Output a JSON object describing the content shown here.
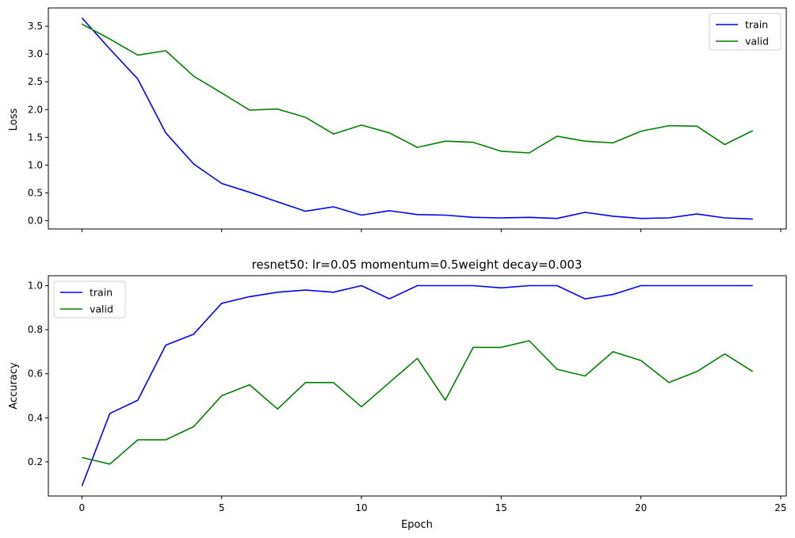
{
  "chart_data": [
    {
      "type": "line",
      "title": "",
      "xlabel": "",
      "ylabel": "Loss",
      "xlim": [
        -1.2,
        25.2
      ],
      "ylim": [
        -0.15,
        3.83
      ],
      "xticks": [
        0,
        5,
        10,
        15,
        20,
        25
      ],
      "xtick_labels": [
        "",
        "",
        "",
        "",
        "",
        ""
      ],
      "yticks": [
        0.0,
        0.5,
        1.0,
        1.5,
        2.0,
        2.5,
        3.0,
        3.5
      ],
      "ytick_labels": [
        "0.0",
        "0.5",
        "1.0",
        "1.5",
        "2.0",
        "2.5",
        "3.0",
        "3.5"
      ],
      "grid": false,
      "legend": "top-right",
      "x": [
        0,
        1,
        2,
        3,
        4,
        5,
        6,
        7,
        8,
        9,
        10,
        11,
        12,
        13,
        14,
        15,
        16,
        17,
        18,
        19,
        20,
        21,
        22,
        23,
        24
      ],
      "series": [
        {
          "name": "train",
          "color": "#0000ff",
          "values": [
            3.65,
            3.09,
            2.55,
            1.58,
            1.02,
            0.67,
            0.51,
            0.34,
            0.17,
            0.25,
            0.1,
            0.18,
            0.11,
            0.1,
            0.06,
            0.05,
            0.06,
            0.04,
            0.15,
            0.08,
            0.04,
            0.05,
            0.12,
            0.05,
            0.03
          ]
        },
        {
          "name": "valid",
          "color": "#008000",
          "values": [
            3.54,
            3.27,
            2.98,
            3.06,
            2.6,
            2.3,
            1.99,
            2.01,
            1.86,
            1.56,
            1.72,
            1.58,
            1.32,
            1.43,
            1.41,
            1.25,
            1.22,
            1.52,
            1.43,
            1.4,
            1.61,
            1.71,
            1.7,
            1.37,
            1.62
          ]
        }
      ]
    },
    {
      "type": "line",
      "title": "resnet50: lr=0.05 momentum=0.5weight decay=0.003",
      "xlabel": "Epoch",
      "ylabel": "Accuracy",
      "xlim": [
        -1.2,
        25.2
      ],
      "ylim": [
        0.045,
        1.045
      ],
      "xticks": [
        0,
        5,
        10,
        15,
        20,
        25
      ],
      "xtick_labels": [
        "0",
        "5",
        "10",
        "15",
        "20",
        "25"
      ],
      "yticks": [
        0.2,
        0.4,
        0.6,
        0.8,
        1.0
      ],
      "ytick_labels": [
        "0.2",
        "0.4",
        "0.6",
        "0.8",
        "1.0"
      ],
      "grid": false,
      "legend": "top-left",
      "x": [
        0,
        1,
        2,
        3,
        4,
        5,
        6,
        7,
        8,
        9,
        10,
        11,
        12,
        13,
        14,
        15,
        16,
        17,
        18,
        19,
        20,
        21,
        22,
        23,
        24
      ],
      "series": [
        {
          "name": "train",
          "color": "#0000ff",
          "values": [
            0.09,
            0.42,
            0.48,
            0.73,
            0.78,
            0.92,
            0.95,
            0.97,
            0.98,
            0.97,
            1.0,
            0.94,
            1.0,
            1.0,
            1.0,
            0.99,
            1.0,
            1.0,
            0.94,
            0.96,
            1.0,
            1.0,
            1.0,
            1.0,
            1.0
          ]
        },
        {
          "name": "valid",
          "color": "#008000",
          "values": [
            0.22,
            0.19,
            0.3,
            0.3,
            0.36,
            0.5,
            0.55,
            0.44,
            0.56,
            0.56,
            0.45,
            0.56,
            0.67,
            0.48,
            0.72,
            0.72,
            0.75,
            0.62,
            0.59,
            0.7,
            0.66,
            0.56,
            0.61,
            0.69,
            0.61
          ]
        }
      ]
    }
  ]
}
